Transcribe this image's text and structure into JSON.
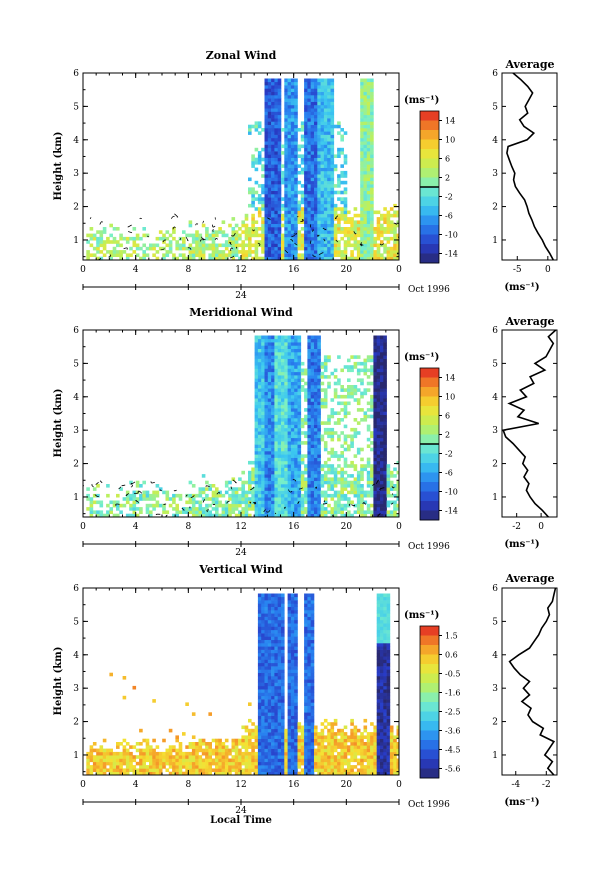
{
  "chart_data": [
    {
      "type": "heatmap",
      "title": "Zonal Wind",
      "ylabel": "Height (km)",
      "xlabel": "",
      "xticks": [
        "0",
        "4",
        "8",
        "12",
        "16",
        "20",
        "0"
      ],
      "xlim": [
        0,
        24
      ],
      "ylim": [
        0.4,
        6
      ],
      "yticks": [
        "1",
        "2",
        "3",
        "4",
        "5",
        "6"
      ],
      "date_marker": "24",
      "date_label": "Oct 1996",
      "colorbar": {
        "unit": "(ms⁻¹)",
        "ticks": [
          "14",
          "10",
          "6",
          "2",
          "-2",
          "-6",
          "-10",
          "-14"
        ],
        "vmin": -16,
        "vmax": 16,
        "zero_line": 0
      },
      "average": {
        "title": "Average",
        "xlabel": "(ms⁻¹)",
        "xticks": [
          "-5",
          "0"
        ],
        "xlim": [
          -7.5,
          1.5
        ],
        "ylim": [
          0.4,
          6
        ],
        "yticks": [
          "1",
          "2",
          "3",
          "4",
          "5",
          "6"
        ],
        "profile": [
          [
            0.4,
            0.9
          ],
          [
            0.6,
            0.3
          ],
          [
            0.8,
            -0.4
          ],
          [
            1.0,
            -0.9
          ],
          [
            1.2,
            -1.6
          ],
          [
            1.4,
            -2.2
          ],
          [
            1.6,
            -2.6
          ],
          [
            1.8,
            -3.1
          ],
          [
            2.0,
            -3.4
          ],
          [
            2.2,
            -3.8
          ],
          [
            2.4,
            -4.6
          ],
          [
            2.6,
            -5.3
          ],
          [
            2.8,
            -5.6
          ],
          [
            3.0,
            -5.4
          ],
          [
            3.2,
            -5.9
          ],
          [
            3.4,
            -6.3
          ],
          [
            3.6,
            -6.7
          ],
          [
            3.8,
            -6.5
          ],
          [
            4.0,
            -3.4
          ],
          [
            4.2,
            -2.3
          ],
          [
            4.4,
            -3.9
          ],
          [
            4.6,
            -4.6
          ],
          [
            4.8,
            -3.3
          ],
          [
            5.0,
            -3.7
          ],
          [
            5.2,
            -3.1
          ],
          [
            5.4,
            -2.5
          ],
          [
            5.6,
            -3.3
          ],
          [
            5.8,
            -4.4
          ],
          [
            6.0,
            -5.7
          ]
        ]
      },
      "base": "pos",
      "towers": [
        [
          14.3,
          0.18
        ],
        [
          15.6,
          0.28
        ],
        [
          17.2,
          0.22
        ],
        [
          18.3,
          0.36
        ],
        [
          21.5,
          0.54
        ]
      ]
    },
    {
      "type": "heatmap",
      "title": "Meridional Wind",
      "ylabel": "Height (km)",
      "xlabel": "",
      "xticks": [
        "0",
        "4",
        "8",
        "12",
        "16",
        "20",
        "0"
      ],
      "xlim": [
        0,
        24
      ],
      "ylim": [
        0.4,
        6
      ],
      "yticks": [
        "1",
        "2",
        "3",
        "4",
        "5",
        "6"
      ],
      "date_marker": "24",
      "date_label": "Oct 1996",
      "colorbar": {
        "unit": "(ms⁻¹)",
        "ticks": [
          "14",
          "10",
          "6",
          "2",
          "-2",
          "-6",
          "-10",
          "-14"
        ],
        "vmin": -16,
        "vmax": 16,
        "zero_line": 0
      },
      "average": {
        "title": "Average",
        "xlabel": "(ms⁻¹)",
        "xticks": [
          "-2",
          "0"
        ],
        "xlim": [
          -3.2,
          1.3
        ],
        "ylim": [
          0.4,
          6
        ],
        "yticks": [
          "1",
          "2",
          "3",
          "4",
          "5",
          "6"
        ],
        "profile": [
          [
            0.4,
            0.6
          ],
          [
            0.6,
            0.1
          ],
          [
            0.8,
            -0.5
          ],
          [
            1.0,
            -0.9
          ],
          [
            1.2,
            -1.2
          ],
          [
            1.4,
            -1.0
          ],
          [
            1.6,
            -1.4
          ],
          [
            1.8,
            -1.1
          ],
          [
            2.0,
            -1.5
          ],
          [
            2.2,
            -1.3
          ],
          [
            2.4,
            -1.8
          ],
          [
            2.6,
            -2.3
          ],
          [
            2.8,
            -2.9
          ],
          [
            3.0,
            -3.1
          ],
          [
            3.2,
            -0.2
          ],
          [
            3.4,
            -1.9
          ],
          [
            3.6,
            -1.4
          ],
          [
            3.8,
            -2.6
          ],
          [
            4.0,
            -1.2
          ],
          [
            4.2,
            -1.7
          ],
          [
            4.4,
            -0.6
          ],
          [
            4.6,
            -0.9
          ],
          [
            4.8,
            0.3
          ],
          [
            5.0,
            -0.5
          ],
          [
            5.2,
            0.4
          ],
          [
            5.4,
            0.7
          ],
          [
            5.6,
            1.0
          ],
          [
            5.8,
            0.6
          ],
          [
            6.0,
            1.2
          ]
        ]
      },
      "base": "mer",
      "towers": [
        [
          13.4,
          0.38
        ],
        [
          14.1,
          0.26
        ],
        [
          15.0,
          0.44
        ],
        [
          15.9,
          0.32
        ],
        [
          17.4,
          0.24
        ],
        [
          22.4,
          0.02
        ]
      ]
    },
    {
      "type": "heatmap",
      "title": "Vertical Wind",
      "ylabel": "Height (km)",
      "xlabel": "Local Time",
      "xticks": [
        "0",
        "4",
        "8",
        "12",
        "16",
        "20",
        "0"
      ],
      "xlim": [
        0,
        24
      ],
      "ylim": [
        0.4,
        6
      ],
      "yticks": [
        "1",
        "2",
        "3",
        "4",
        "5",
        "6"
      ],
      "date_marker": "24",
      "date_label": "Oct 1996",
      "colorbar": {
        "unit": "(ms⁻¹)",
        "ticks": [
          "1.5",
          "0.6",
          "-0.5",
          "-1.6",
          "-2.5",
          "-3.6",
          "-4.5",
          "-5.6"
        ],
        "vmin": -6.1,
        "vmax": 2.0,
        "zero_line": null
      },
      "average": {
        "title": "Average",
        "xlabel": "(ms⁻¹)",
        "xticks": [
          "-4",
          "-2"
        ],
        "xlim": [
          -4.9,
          -1.3
        ],
        "ylim": [
          0.4,
          6
        ],
        "yticks": [
          "1",
          "2",
          "3",
          "4",
          "5",
          "6"
        ],
        "profile": [
          [
            0.4,
            -1.5
          ],
          [
            0.6,
            -1.9
          ],
          [
            0.8,
            -1.6
          ],
          [
            1.0,
            -2.1
          ],
          [
            1.2,
            -1.8
          ],
          [
            1.4,
            -1.5
          ],
          [
            1.6,
            -2.4
          ],
          [
            1.8,
            -2.2
          ],
          [
            2.0,
            -2.9
          ],
          [
            2.2,
            -3.2
          ],
          [
            2.4,
            -3.0
          ],
          [
            2.6,
            -3.6
          ],
          [
            2.8,
            -3.1
          ],
          [
            3.0,
            -3.5
          ],
          [
            3.2,
            -3.1
          ],
          [
            3.4,
            -3.7
          ],
          [
            3.6,
            -4.1
          ],
          [
            3.8,
            -4.4
          ],
          [
            4.0,
            -3.8
          ],
          [
            4.2,
            -3.1
          ],
          [
            4.4,
            -2.8
          ],
          [
            4.6,
            -2.5
          ],
          [
            4.8,
            -2.3
          ],
          [
            5.0,
            -2.0
          ],
          [
            5.2,
            -1.8
          ],
          [
            5.4,
            -1.9
          ],
          [
            5.6,
            -1.6
          ],
          [
            5.8,
            -1.5
          ],
          [
            6.0,
            -1.4
          ]
        ]
      },
      "base": "vert",
      "towers": [
        [
          13.6,
          0.06
        ],
        [
          14.7,
          0.04
        ],
        [
          15.8,
          0.03
        ],
        [
          17.0,
          0.05
        ],
        [
          22.7,
          0.02
        ]
      ]
    }
  ]
}
